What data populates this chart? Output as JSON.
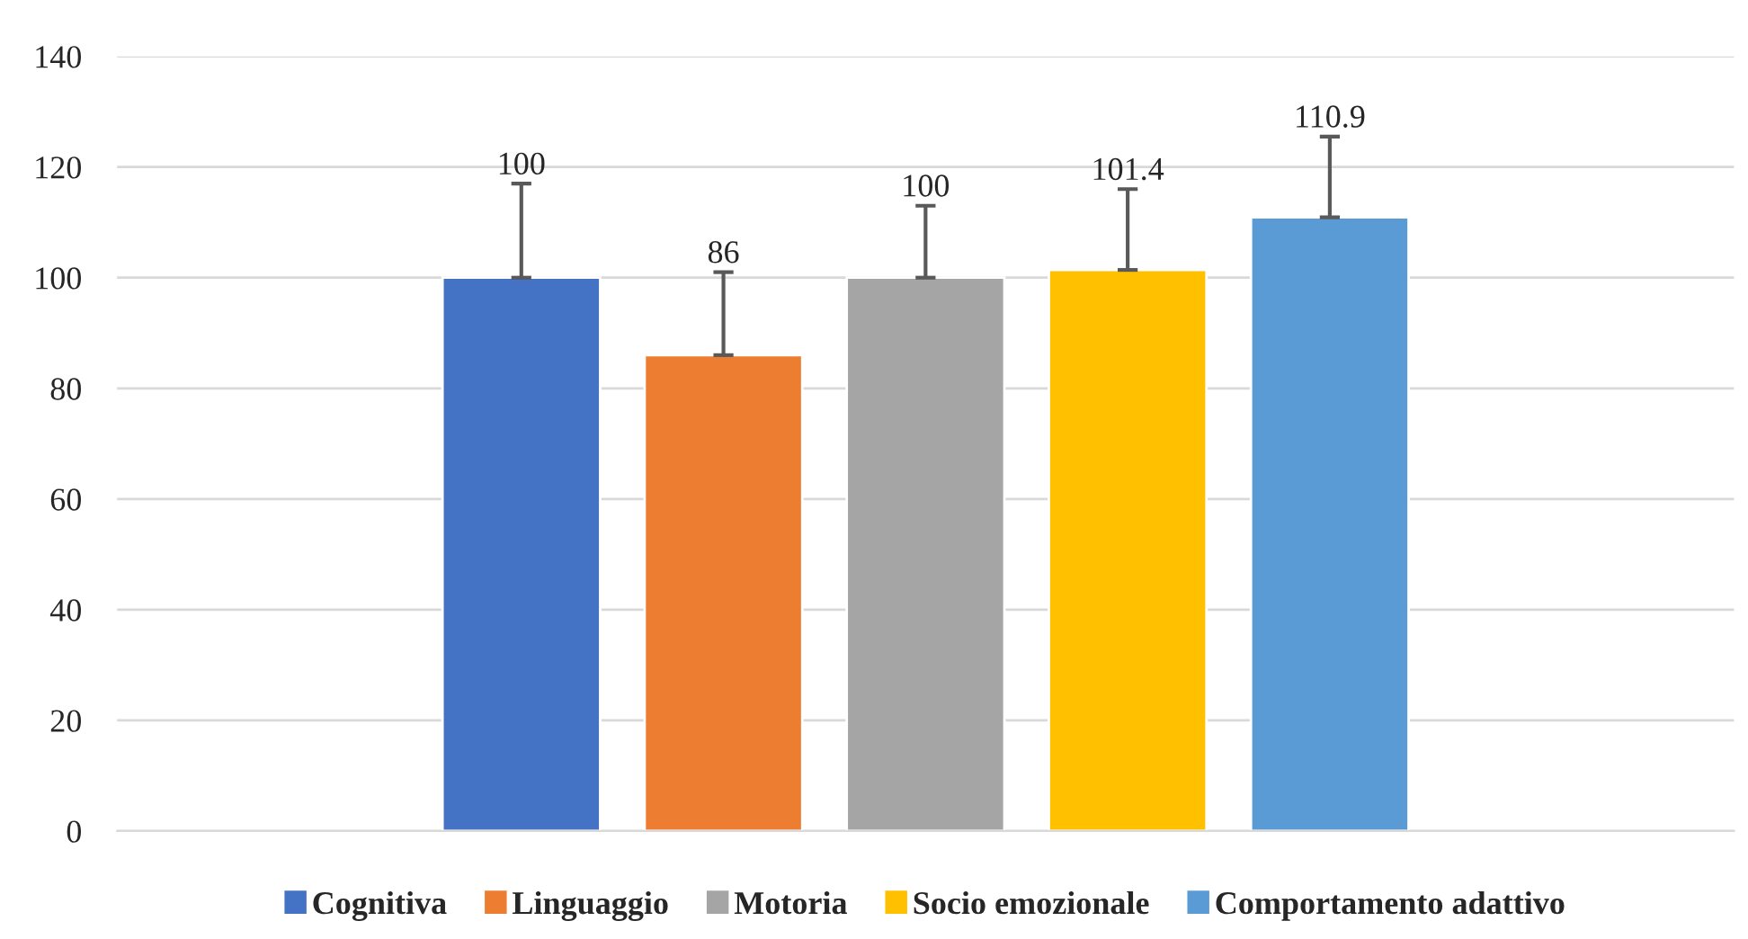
{
  "chart_data": {
    "type": "bar",
    "categories": [
      null
    ],
    "series": [
      {
        "name": "Cognitiva",
        "color": "#4472c4",
        "values": [
          100
        ],
        "errors": [
          [
            100,
            117
          ]
        ]
      },
      {
        "name": "Linguaggio",
        "color": "#ed7d31",
        "values": [
          86
        ],
        "errors": [
          [
            86,
            101
          ]
        ]
      },
      {
        "name": "Motoria",
        "color": "#a5a5a5",
        "values": [
          100
        ],
        "errors": [
          [
            100,
            113
          ]
        ]
      },
      {
        "name": "Socio emozionale",
        "color": "#ffc000",
        "values": [
          101.4
        ],
        "errors": [
          [
            101.4,
            116
          ]
        ]
      },
      {
        "name": "Comportamento adattivo",
        "color": "#5b9bd5",
        "values": [
          110.9
        ],
        "errors": [
          [
            110.9,
            125.5
          ]
        ]
      }
    ],
    "ylim": [
      0,
      140
    ],
    "yticks": [
      0,
      20,
      40,
      60,
      80,
      100,
      120,
      140
    ],
    "grid": "y",
    "legend": "bottom",
    "data_labels": true
  }
}
